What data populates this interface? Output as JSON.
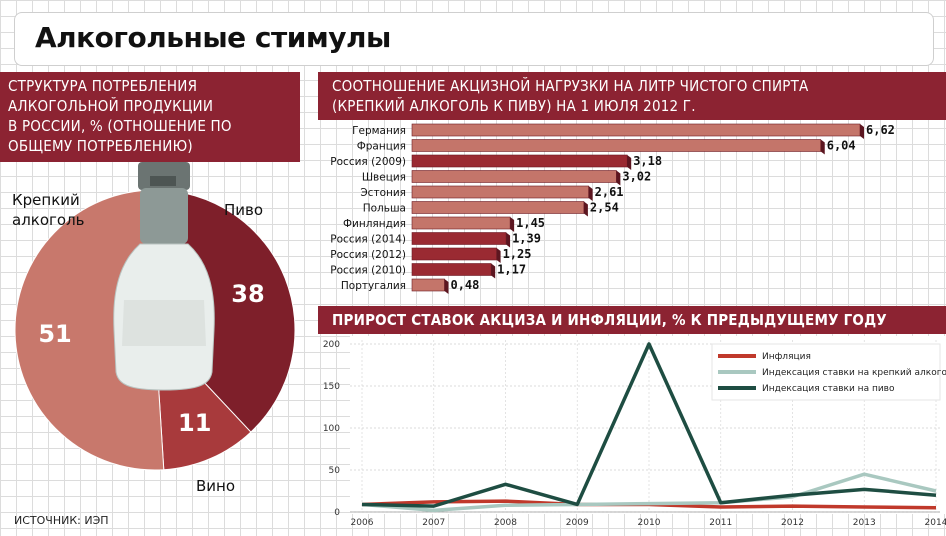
{
  "title": "Алкогольные стимулы",
  "source": "ИСТОЧНИК: ИЭП",
  "pie": {
    "heading_lines": [
      "СТРУКТУРА ПОТРЕБЛЕНИЯ",
      "АЛКОГОЛЬНОЙ ПРОДУКЦИИ",
      "В РОССИИ, % (ОТНОШЕНИЕ ПО",
      "ОБЩЕМУ ПОТРЕБЛЕНИЮ)"
    ],
    "label_strong": "Крепкий",
    "label_strong_2": "алкоголь",
    "label_beer": "Пиво",
    "label_wine": "Вино"
  },
  "bar_chart": {
    "heading_lines": [
      "СООТНОШЕНИЕ АКЦИЗНОЙ НАГРУЗКИ НА ЛИТР ЧИСТОГО СПИРТА",
      "(КРЕПКИЙ АЛКОГОЛЬ К ПИВУ) НА 1 ИЮЛЯ 2012 Г."
    ]
  },
  "line_chart": {
    "heading": "ПРИРОСТ СТАВОК АКЦИЗА И ИНФЛЯЦИИ, % К ПРЕДЫДУЩЕМУ ГОДУ"
  },
  "colors": {
    "brand": "#8c2332",
    "strong": "#c8786c",
    "beer": "#7e1f2a",
    "wine": "#a83a3c",
    "bar_light": "#c4756a",
    "bar_dark": "#9a2a32",
    "inflation": "#c0392b",
    "strong_index": "#a9c8c0",
    "beer_index": "#1e4d42"
  },
  "chart_data": [
    {
      "type": "pie",
      "categories": [
        "Крепкий алкоголь",
        "Пиво",
        "Вино"
      ],
      "values": [
        51,
        38,
        11
      ],
      "value_labels": [
        "51",
        "38",
        "11"
      ]
    },
    {
      "type": "bar",
      "orientation": "horizontal",
      "categories": [
        "Германия",
        "Франция",
        "Россия (2009)",
        "Швеция",
        "Эстония",
        "Польша",
        "Финляндия",
        "Россия (2014)",
        "Россия (2012)",
        "Россия (2010)",
        "Португалия"
      ],
      "values": [
        6.62,
        6.04,
        3.18,
        3.02,
        2.61,
        2.54,
        1.45,
        1.39,
        1.25,
        1.17,
        0.48
      ],
      "value_labels": [
        "6,62",
        "6,04",
        "3,18",
        "3,02",
        "2,61",
        "2,54",
        "1,45",
        "1,39",
        "1,25",
        "1,17",
        "0,48"
      ],
      "highlight": [
        false,
        false,
        true,
        false,
        false,
        false,
        false,
        true,
        true,
        true,
        false
      ],
      "xlim": [
        0,
        6.62
      ]
    },
    {
      "type": "line",
      "x": [
        "2006",
        "2007",
        "2008",
        "2009",
        "2010",
        "2011",
        "2012",
        "2013",
        "2014"
      ],
      "ylim": [
        0,
        200
      ],
      "yticks": [
        "0",
        "50",
        "100",
        "150",
        "200"
      ],
      "legend_position": "top-right",
      "series": [
        {
          "name": "Инфляция",
          "values": [
            9,
            12,
            13,
            9,
            9,
            6,
            7,
            6,
            5
          ]
        },
        {
          "name": "Индексация ставки на крепкий алкоголь",
          "values": [
            9,
            2,
            8,
            9,
            10,
            11,
            18,
            45,
            25
          ]
        },
        {
          "name": "Индексация ставки на пиво",
          "values": [
            9,
            7,
            33,
            9,
            200,
            11,
            20,
            27,
            20
          ]
        }
      ]
    }
  ]
}
